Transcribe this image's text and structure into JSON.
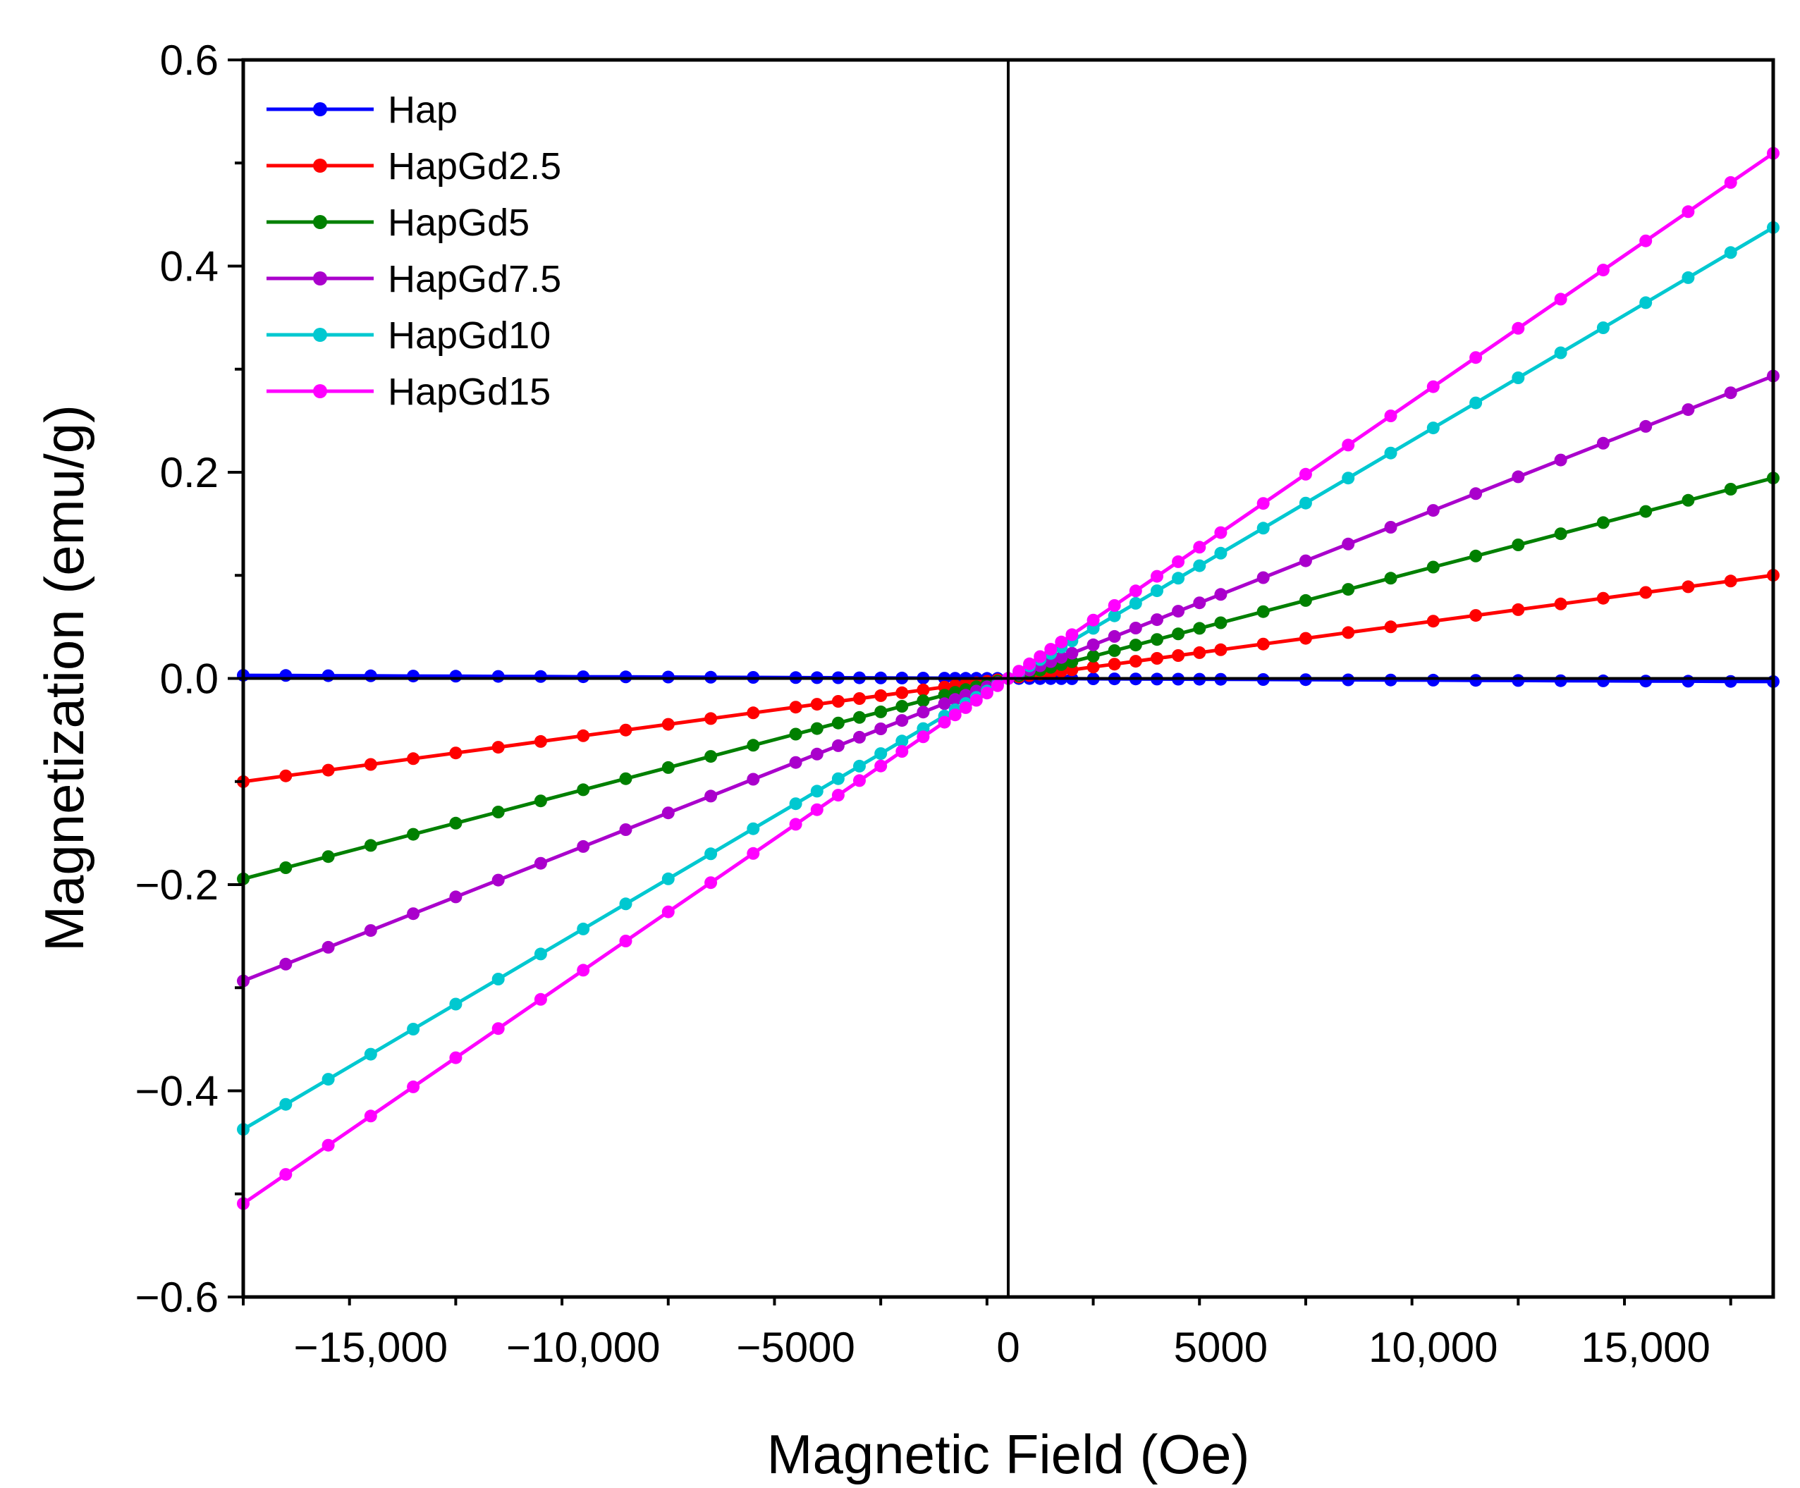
{
  "chart_data": {
    "type": "line",
    "title": "",
    "xlabel": "Magnetic Field (Oe)",
    "ylabel": "Magnetization (emu/g)",
    "xlim": [
      -18000,
      18000
    ],
    "ylim": [
      -0.6,
      0.6
    ],
    "xticks": [
      -15000,
      -10000,
      -5000,
      0,
      5000,
      10000,
      15000
    ],
    "xtick_labels": [
      "−15,000",
      "−10,000",
      "−5000",
      "0",
      "5000",
      "10,000",
      "15,000"
    ],
    "yticks": [
      -0.6,
      -0.4,
      -0.2,
      0.0,
      0.2,
      0.4,
      0.6
    ],
    "ytick_labels": [
      "−0.6",
      "−0.4",
      "−0.2",
      "0.0",
      "0.2",
      "0.4",
      "0.6"
    ],
    "grid": false,
    "legend_position": "top-left",
    "x": [
      -18000,
      -17000,
      -16000,
      -15000,
      -14000,
      -13000,
      -12000,
      -11000,
      -10000,
      -9000,
      -8000,
      -7000,
      -6000,
      -5000,
      -4500,
      -4000,
      -3500,
      -3000,
      -2500,
      -2000,
      -1500,
      -1250,
      -1000,
      -750,
      -500,
      -250,
      0,
      250,
      500,
      750,
      1000,
      1250,
      1500,
      2000,
      2500,
      3000,
      3500,
      4000,
      4500,
      5000,
      6000,
      7000,
      8000,
      9000,
      10000,
      11000,
      12000,
      13000,
      14000,
      15000,
      16000,
      17000,
      18000
    ],
    "series": [
      {
        "name": "Hap",
        "color": "#0000ff",
        "slope": -1.67e-07
      },
      {
        "name": "HapGd2.5",
        "color": "#ff0000",
        "slope": 5.56e-06
      },
      {
        "name": "HapGd5",
        "color": "#008000",
        "slope": 1.08e-05
      },
      {
        "name": "HapGd7.5",
        "color": "#aa00cc",
        "slope": 1.63e-05
      },
      {
        "name": "HapGd10",
        "color": "#00c8d0",
        "slope": 2.43e-05
      },
      {
        "name": "HapGd15",
        "color": "#ff00ff",
        "slope": 2.83e-05
      }
    ]
  }
}
